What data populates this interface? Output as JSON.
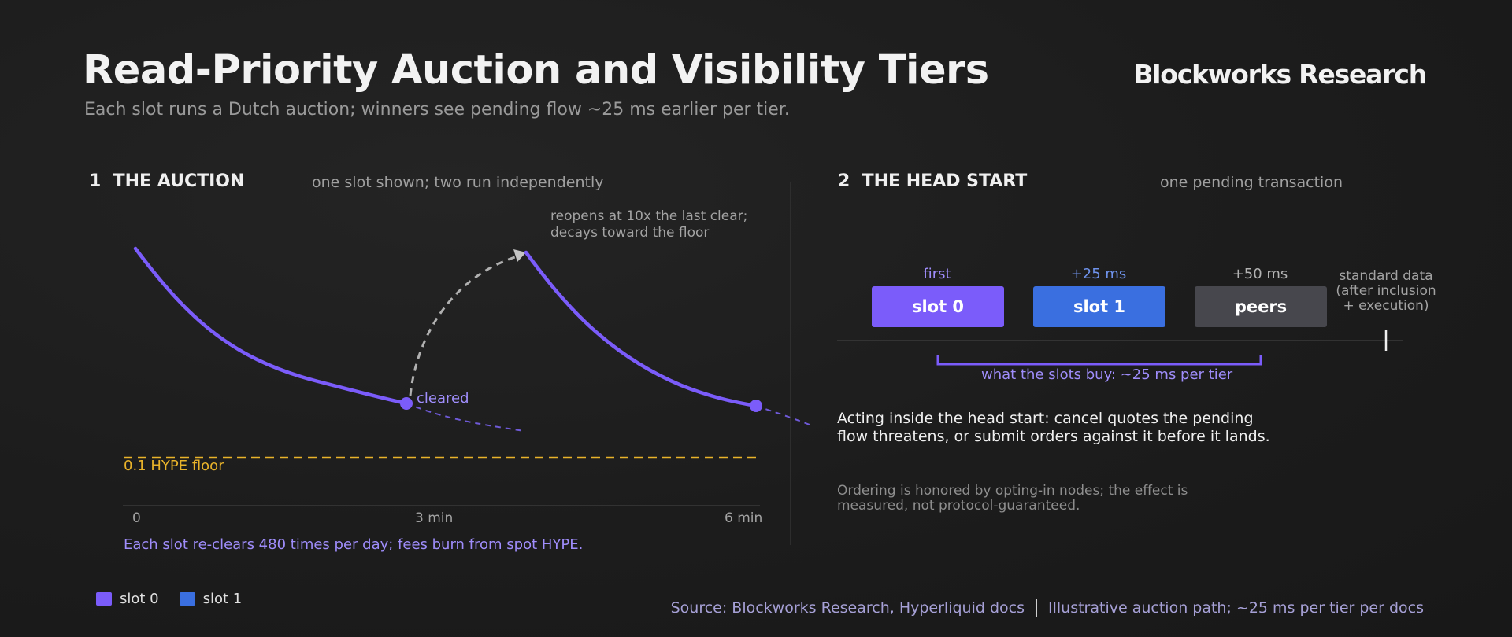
{
  "header": {
    "title": "Read-Priority Auction and Visibility Tiers",
    "subtitle": "Each slot runs a Dutch auction; winners see pending flow ~25 ms earlier per tier.",
    "brand": "Blockworks Research"
  },
  "auction": {
    "number": "1",
    "title": "THE AUCTION",
    "subtitle": "one slot shown; two run independently",
    "reopen_note_line1": "reopens at 10x the last clear;",
    "reopen_note_line2": "decays toward the floor",
    "cleared_label": "cleared",
    "floor_label": "0.1 HYPE floor",
    "x_ticks": [
      "0",
      "3 min",
      "6 min"
    ],
    "footnote": "Each slot re-clears 480 times per day; fees burn from spot HYPE."
  },
  "head_start": {
    "number": "2",
    "title": "THE HEAD START",
    "subtitle": "one pending transaction",
    "tiers": [
      {
        "timing": "first",
        "label": "slot 0",
        "color": "#7b5cfa",
        "timing_color": "#9f8dfb"
      },
      {
        "timing": "+25 ms",
        "label": "slot 1",
        "color": "#3a6fe0",
        "timing_color": "#6f93ec"
      },
      {
        "timing": "+50 ms",
        "label": "peers",
        "color": "#47474d",
        "timing_color": "#b3b3b3"
      }
    ],
    "standard_line1": "standard data",
    "standard_line2": "(after inclusion",
    "standard_line3": "+ execution)",
    "bracket_label": "what the slots buy: ~25 ms per tier",
    "action_line1": "Acting inside the head start: cancel quotes the pending",
    "action_line2": "flow threatens, or submit orders against it before it lands.",
    "note_line1": "Ordering is honored by opting-in nodes; the effect is",
    "note_line2": "measured, not protocol-guaranteed."
  },
  "legend": [
    {
      "label": "slot 0",
      "color": "#7b5cfa"
    },
    {
      "label": "slot 1",
      "color": "#3a6fe0"
    }
  ],
  "source": {
    "left": "Source: Blockworks Research, Hyperliquid docs",
    "right": "Illustrative auction path; ~25 ms per tier per docs"
  },
  "colors": {
    "slot0": "#7b5cfa",
    "slot1": "#3a6fe0",
    "floor": "#e9b32a",
    "accent_text": "#9f8dfb"
  }
}
